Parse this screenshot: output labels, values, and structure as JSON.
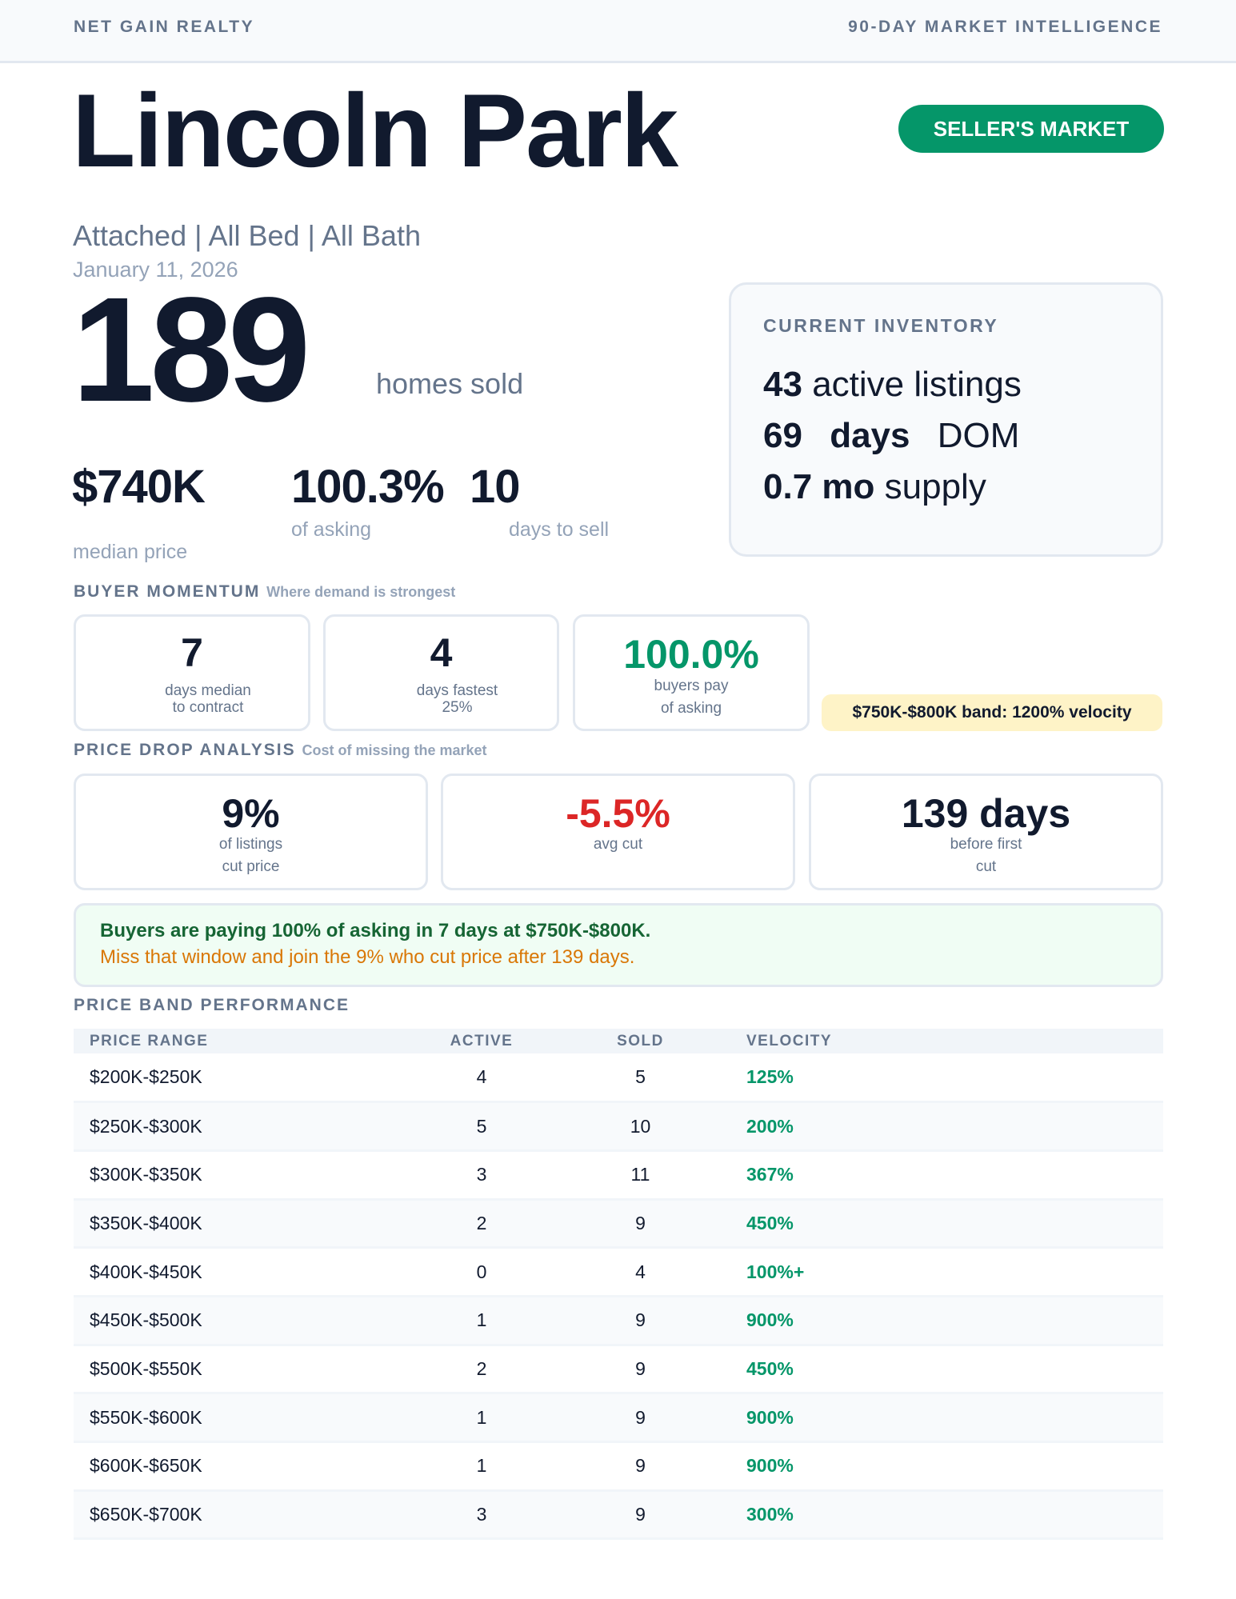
{
  "header": {
    "brand": "NET GAIN REALTY",
    "report_type": "90-DAY MARKET INTELLIGENCE"
  },
  "title": "Lincoln Park",
  "market_badge": "SELLER'S MARKET",
  "filters": "Attached | All Bed | All Bath",
  "date": "January 11, 2026",
  "homes_sold": {
    "value": "189",
    "label": "homes sold"
  },
  "median_price": {
    "value": "$740K",
    "label": "median price"
  },
  "pct_asking": {
    "value": "100.3%",
    "label": "of asking"
  },
  "days_to_sell": {
    "value": "10",
    "label": "days to sell"
  },
  "inventory": {
    "title": "CURRENT INVENTORY",
    "active_value": "43",
    "active_label": "active listings",
    "dom_value": "69",
    "dom_unit": "days",
    "dom_label": "DOM",
    "supply_value": "0.7 mo",
    "supply_label": "supply"
  },
  "buyer_momentum": {
    "title": "BUYER MOMENTUM",
    "subtitle": "Where demand is strongest",
    "cards": [
      {
        "value": "7",
        "line1": "days median",
        "line2": "to contract"
      },
      {
        "value": "4",
        "line1": "days fastest",
        "line2": "25%"
      },
      {
        "value": "100.0%",
        "line1": "buyers pay",
        "line2": "of asking"
      }
    ],
    "highlight": "$750K-$800K band: 1200% velocity"
  },
  "price_drop": {
    "title": "PRICE DROP ANALYSIS",
    "subtitle": "Cost of missing the market",
    "cards": [
      {
        "value": "9%",
        "line1": "of listings",
        "line2": "cut price"
      },
      {
        "value": "-5.5%",
        "line1": "avg cut",
        "line2": ""
      },
      {
        "value": "139 days",
        "line1": "before first",
        "line2": "cut"
      }
    ]
  },
  "callout": {
    "line1": "Buyers are paying 100% of asking in 7 days at $750K-$800K.",
    "line2": "Miss that window and join the 9% who cut price after 139 days."
  },
  "price_bands": {
    "title": "PRICE BAND PERFORMANCE",
    "columns": [
      "PRICE RANGE",
      "ACTIVE",
      "SOLD",
      "VELOCITY"
    ],
    "rows": [
      [
        "$200K-$250K",
        "4",
        "5",
        "125%"
      ],
      [
        "$250K-$300K",
        "5",
        "10",
        "200%"
      ],
      [
        "$300K-$350K",
        "3",
        "11",
        "367%"
      ],
      [
        "$350K-$400K",
        "2",
        "9",
        "450%"
      ],
      [
        "$400K-$450K",
        "0",
        "4",
        "100%+"
      ],
      [
        "$450K-$500K",
        "1",
        "9",
        "900%"
      ],
      [
        "$500K-$550K",
        "2",
        "9",
        "450%"
      ],
      [
        "$550K-$600K",
        "1",
        "9",
        "900%"
      ],
      [
        "$600K-$650K",
        "1",
        "9",
        "900%"
      ],
      [
        "$650K-$700K",
        "3",
        "9",
        "300%"
      ]
    ]
  },
  "colors": {
    "accent_green": "#059669",
    "negative_red": "#dc2626",
    "callout_green": "#166534",
    "callout_orange": "#d97706",
    "highlight_yellow": "#fef3c7"
  }
}
